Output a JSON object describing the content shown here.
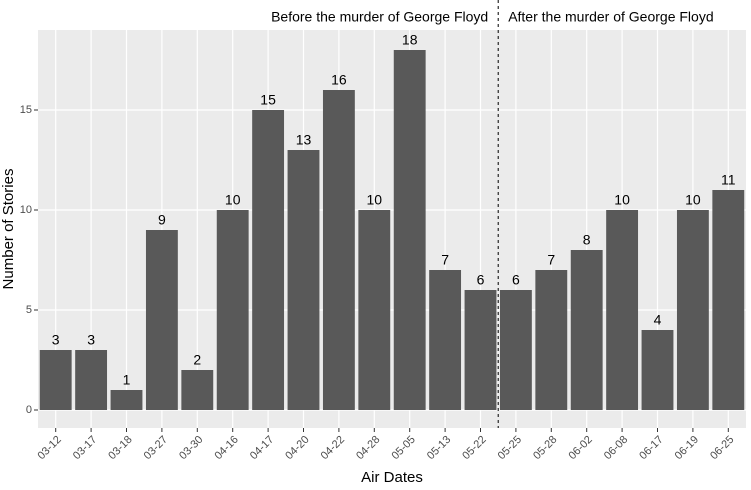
{
  "chart_data": {
    "type": "bar",
    "x_label": "Air Dates",
    "y_label": "Number of Stories",
    "annotations": [
      "Before the murder of George Floyd",
      "After the murder of George Floyd"
    ],
    "categories": [
      "03-12",
      "03-17",
      "03-18",
      "03-27",
      "03-30",
      "04-16",
      "04-17",
      "04-20",
      "04-22",
      "04-28",
      "05-05",
      "05-13",
      "05-22",
      "05-25",
      "05-28",
      "06-02",
      "06-08",
      "06-17",
      "06-19",
      "06-25"
    ],
    "values": [
      3,
      3,
      1,
      9,
      2,
      10,
      15,
      13,
      16,
      10,
      18,
      7,
      6,
      6,
      7,
      8,
      10,
      4,
      10,
      11
    ],
    "color": "#595959",
    "ylim": [
      -0.9,
      19
    ],
    "yticks": [
      0,
      5,
      10,
      15
    ],
    "grid": true
  }
}
